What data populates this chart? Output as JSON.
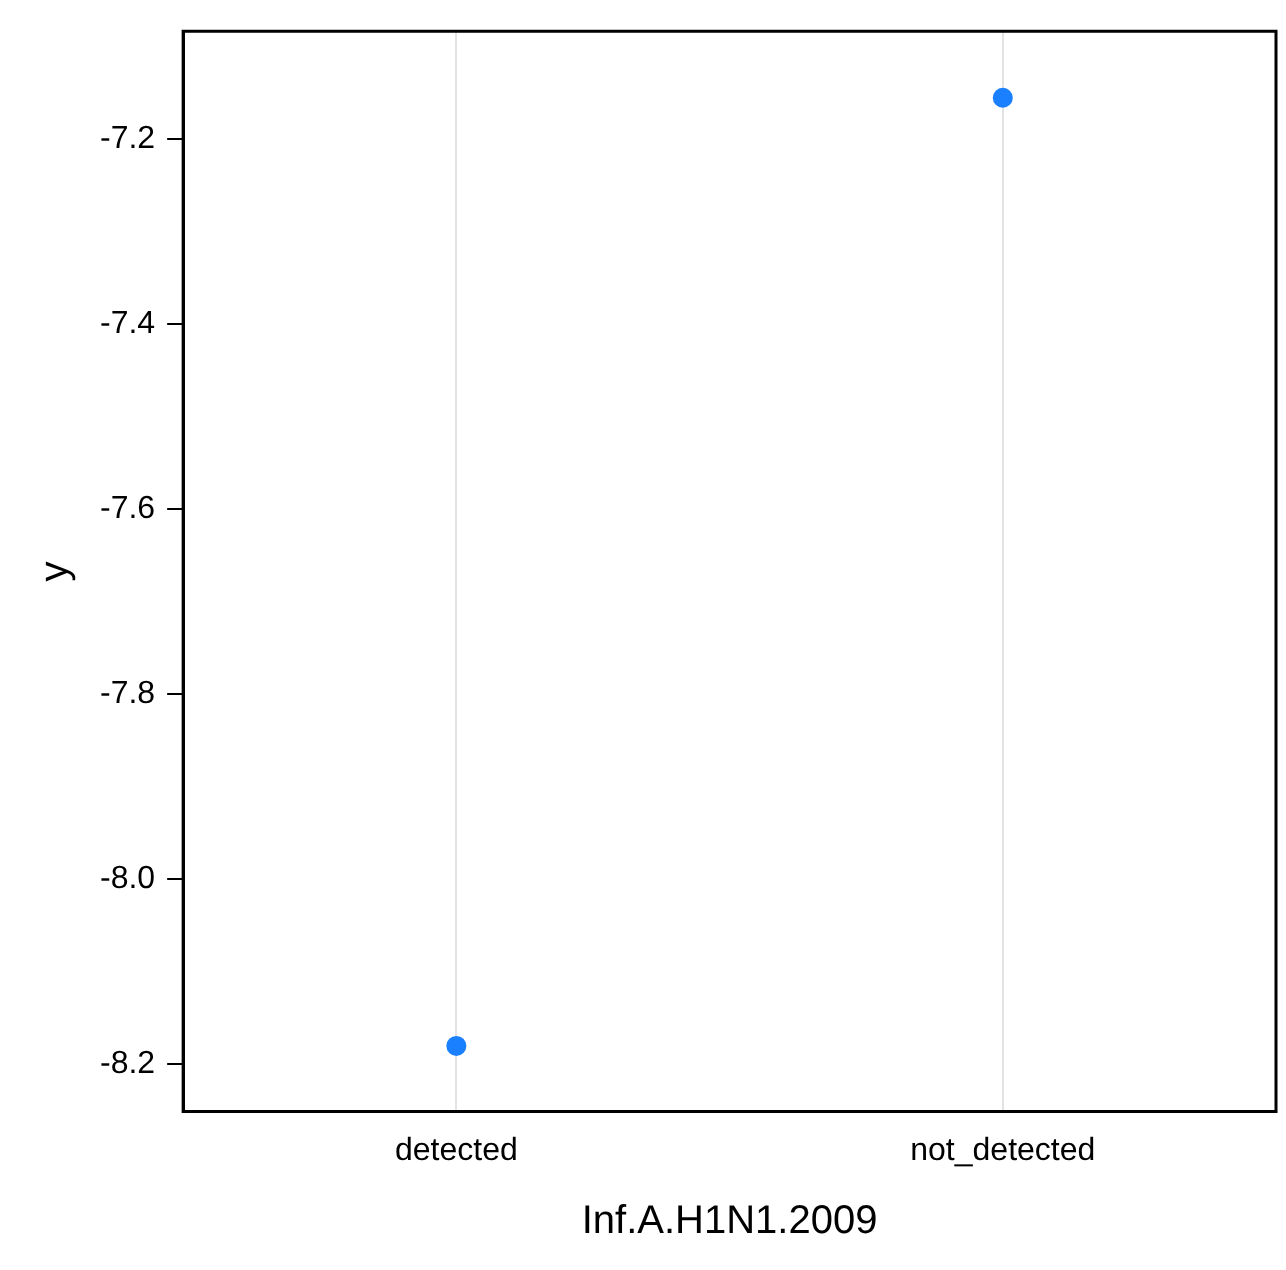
{
  "chart_data": {
    "type": "scatter",
    "xlabel": "Inf.A.H1N1.2009",
    "ylabel": "y",
    "categories": [
      "detected",
      "not_detected"
    ],
    "series": [
      {
        "color": "#1a80ff",
        "values": [
          -8.18,
          -7.155
        ]
      }
    ],
    "ylim": [
      -8.251,
      -7.083
    ],
    "yticks": [
      {
        "value": -8.2,
        "label": "-8.2"
      },
      {
        "value": -8,
        "label": "-8.0"
      },
      {
        "value": -7.8,
        "label": "-7.8"
      },
      {
        "value": -7.6,
        "label": "-7.6"
      },
      {
        "value": -7.4,
        "label": "-7.4"
      },
      {
        "value": -7.2,
        "label": "-7.2"
      }
    ],
    "grid": "x",
    "legend": false,
    "marker": "circle"
  }
}
